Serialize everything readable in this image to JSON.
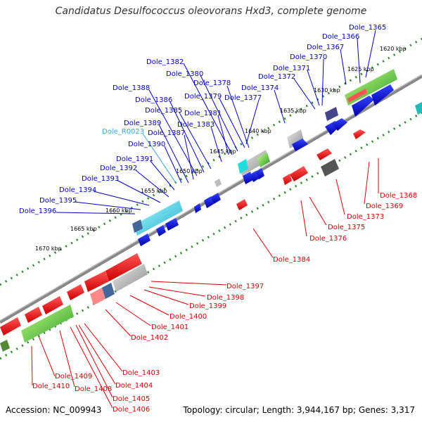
{
  "title": "Candidatus Desulfococcus oleovorans Hxd3, complete genome",
  "accession_text": "Accession: NC_009943",
  "summary_text": "Topology: circular; Length: 3,944,167 bp; Genes: 3,317",
  "colors": {
    "plus_label": "#0000cc",
    "rna_label": "#33aadd",
    "minus_label": "#dd0000",
    "backbone": "#777777",
    "ticks": "#228822"
  },
  "scale_labels": [
    "1620 kbp",
    "1625 kbp",
    "1630 kbp",
    "1635 kbp",
    "1640 kbp",
    "1645 kbp",
    "1650 kbp",
    "1655 kbp",
    "1660 kbp",
    "1665 kbp",
    "1670 kbp"
  ],
  "upper_strand_labels": [
    "Dole_1365",
    "Dole_1366",
    "Dole_1367",
    "Dole_1370",
    "Dole_1371",
    "Dole_1372",
    "Dole_1374",
    "Dole_1377",
    "Dole_1378",
    "Dole_1379",
    "Dole_1380",
    "Dole_1382",
    "Dole_1381",
    "Dole_1383",
    "Dole_1385",
    "Dole_1386",
    "Dole_1388",
    "Dole_1387",
    "Dole_1389",
    "Dole_R0023",
    "Dole_1390",
    "Dole_1391",
    "Dole_1392",
    "Dole_1393",
    "Dole_1394",
    "Dole_1395",
    "Dole_1396"
  ],
  "lower_strand_labels": [
    "Dole_1368",
    "Dole_1369",
    "Dole_1373",
    "Dole_1375",
    "Dole_1376",
    "Dole_1384",
    "Dole_1397",
    "Dole_1398",
    "Dole_1399",
    "Dole_1400",
    "Dole_1401",
    "Dole_1402",
    "Dole_1403",
    "Dole_1404",
    "Dole_1405",
    "Dole_1406",
    "Dole_1408",
    "Dole_1409",
    "Dole_1410"
  ]
}
